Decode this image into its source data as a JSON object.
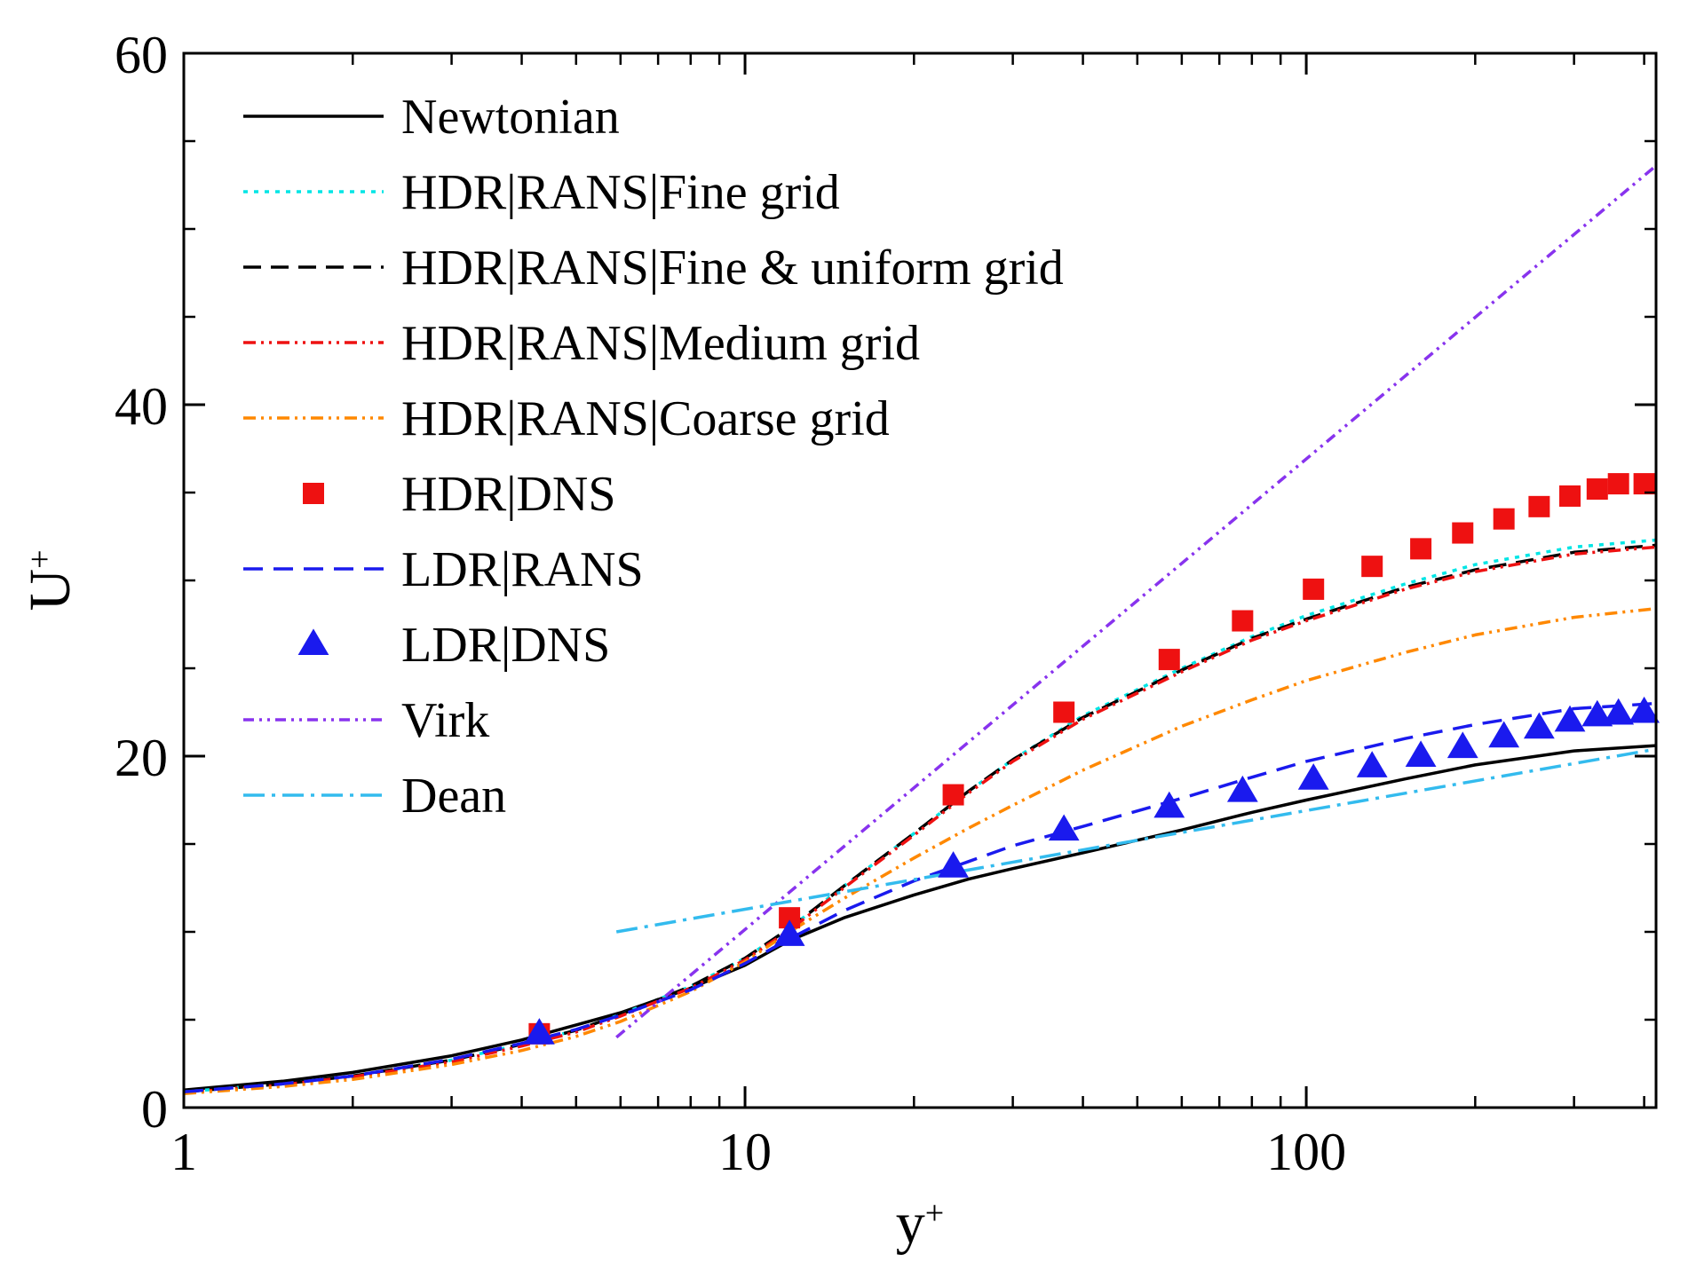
{
  "chart_data": {
    "type": "line",
    "xlabel": "y",
    "xlabel_sup": "+",
    "ylabel": "U",
    "ylabel_sup": "+",
    "xscale": "log",
    "xlim": [
      1,
      420
    ],
    "ylim": [
      0,
      60
    ],
    "xticks": [
      {
        "value": 1,
        "label": "1"
      },
      {
        "value": 10,
        "label": "10"
      },
      {
        "value": 100,
        "label": "100"
      }
    ],
    "yticks": [
      {
        "value": 0,
        "label": "0"
      },
      {
        "value": 20,
        "label": "20"
      },
      {
        "value": 40,
        "label": "40"
      },
      {
        "value": 60,
        "label": "60"
      }
    ],
    "grid": false,
    "legend_position": "top-left",
    "series": [
      {
        "name": "Newtonian",
        "kind": "line",
        "color": "#000000",
        "dash": "none",
        "x": [
          1,
          1.5,
          2,
          3,
          4,
          5,
          6,
          8,
          10,
          12,
          15,
          20,
          25,
          30,
          40,
          60,
          80,
          100,
          150,
          200,
          300,
          420
        ],
        "y": [
          1.0,
          1.5,
          2.0,
          2.95,
          3.85,
          4.7,
          5.4,
          6.8,
          8.1,
          9.5,
          10.8,
          12.1,
          13.0,
          13.6,
          14.5,
          15.8,
          16.8,
          17.5,
          18.7,
          19.5,
          20.3,
          20.6
        ]
      },
      {
        "name": "HDR|RANS|Fine grid",
        "kind": "line",
        "color": "#00e5e5",
        "dash": "5,7",
        "x": [
          1,
          1.5,
          2,
          3,
          4,
          5,
          6,
          8,
          10,
          12,
          15,
          20,
          25,
          30,
          40,
          60,
          80,
          100,
          150,
          200,
          300,
          420
        ],
        "y": [
          0.9,
          1.35,
          1.8,
          2.7,
          3.6,
          4.4,
          5.3,
          6.9,
          8.5,
          10.2,
          12.6,
          15.6,
          18.0,
          19.8,
          22.3,
          25.0,
          26.8,
          28.0,
          29.8,
          30.9,
          31.9,
          32.3
        ]
      },
      {
        "name": "HDR|RANS|Fine & uniform grid",
        "kind": "line",
        "color": "#000000",
        "dash": "20,11",
        "x": [
          1,
          1.5,
          2,
          3,
          4,
          5,
          6,
          8,
          10,
          12,
          15,
          20,
          25,
          30,
          40,
          60,
          80,
          100,
          150,
          200,
          300,
          420
        ],
        "y": [
          0.9,
          1.35,
          1.8,
          2.7,
          3.6,
          4.4,
          5.3,
          6.9,
          8.5,
          10.2,
          12.6,
          15.6,
          18.0,
          19.8,
          22.2,
          24.9,
          26.7,
          27.8,
          29.6,
          30.6,
          31.6,
          32.0
        ]
      },
      {
        "name": "HDR|RANS|Medium grid",
        "kind": "line",
        "color": "#ee1111",
        "dash": "14,6,3,6,3,6",
        "x": [
          1,
          1.5,
          2,
          3,
          4,
          5,
          6,
          8,
          10,
          12,
          15,
          20,
          25,
          30,
          40,
          60,
          80,
          100,
          150,
          200,
          300,
          420
        ],
        "y": [
          0.85,
          1.3,
          1.75,
          2.6,
          3.5,
          4.3,
          5.2,
          6.8,
          8.4,
          10.1,
          12.5,
          15.5,
          17.9,
          19.7,
          22.1,
          24.8,
          26.6,
          27.7,
          29.5,
          30.5,
          31.5,
          31.9
        ]
      },
      {
        "name": "HDR|RANS|Coarse grid",
        "kind": "line",
        "color": "#ff8800",
        "dash": "14,6,3,6,3,6",
        "x": [
          1,
          1.5,
          2,
          3,
          4,
          5,
          6,
          8,
          10,
          12,
          15,
          20,
          25,
          30,
          40,
          60,
          80,
          100,
          150,
          200,
          300,
          420
        ],
        "y": [
          0.8,
          1.2,
          1.6,
          2.45,
          3.25,
          4.05,
          4.9,
          6.6,
          8.3,
          10.0,
          11.9,
          14.2,
          15.9,
          17.2,
          19.2,
          21.7,
          23.2,
          24.3,
          25.9,
          26.9,
          27.9,
          28.4
        ]
      },
      {
        "name": "HDR|DNS",
        "kind": "marker",
        "marker": "square",
        "color": "#ee1111",
        "x": [
          4.3,
          12,
          23.5,
          37,
          57,
          77,
          103,
          131,
          160,
          190,
          225,
          260,
          295,
          330,
          360,
          400
        ],
        "y": [
          4.2,
          10.8,
          17.8,
          22.5,
          25.5,
          27.7,
          29.5,
          30.8,
          31.8,
          32.7,
          33.5,
          34.2,
          34.8,
          35.2,
          35.5,
          35.5
        ]
      },
      {
        "name": "LDR|RANS",
        "kind": "line",
        "color": "#1a1aee",
        "dash": "22,12",
        "x": [
          1,
          1.5,
          2,
          3,
          4,
          5,
          6,
          8,
          10,
          12,
          15,
          20,
          25,
          30,
          40,
          60,
          80,
          100,
          150,
          200,
          300,
          420
        ],
        "y": [
          0.9,
          1.35,
          1.8,
          2.75,
          3.65,
          4.45,
          5.25,
          6.7,
          8.2,
          9.6,
          11.2,
          12.9,
          14.0,
          14.9,
          16.0,
          17.6,
          18.8,
          19.7,
          21.0,
          21.8,
          22.7,
          23.0
        ]
      },
      {
        "name": "LDR|DNS",
        "kind": "marker",
        "marker": "triangle",
        "color": "#1a1aee",
        "x": [
          4.3,
          12,
          23.5,
          37,
          57,
          77,
          103,
          131,
          160,
          190,
          225,
          260,
          295,
          330,
          360,
          400
        ],
        "y": [
          4.2,
          9.8,
          13.7,
          15.8,
          17.1,
          18.0,
          18.7,
          19.4,
          20.0,
          20.5,
          21.1,
          21.6,
          22.0,
          22.3,
          22.4,
          22.5
        ]
      },
      {
        "name": "Virk",
        "kind": "line",
        "color": "#8833ee",
        "dash": "12,6,3,6,3,6",
        "x": [
          5.9,
          420
        ],
        "y": [
          4.0,
          53.6
        ]
      },
      {
        "name": "Dean",
        "kind": "line",
        "color": "#33bbee",
        "dash": "24,8,4,8",
        "x": [
          5.9,
          420
        ],
        "y": [
          10.0,
          20.4
        ]
      }
    ]
  }
}
